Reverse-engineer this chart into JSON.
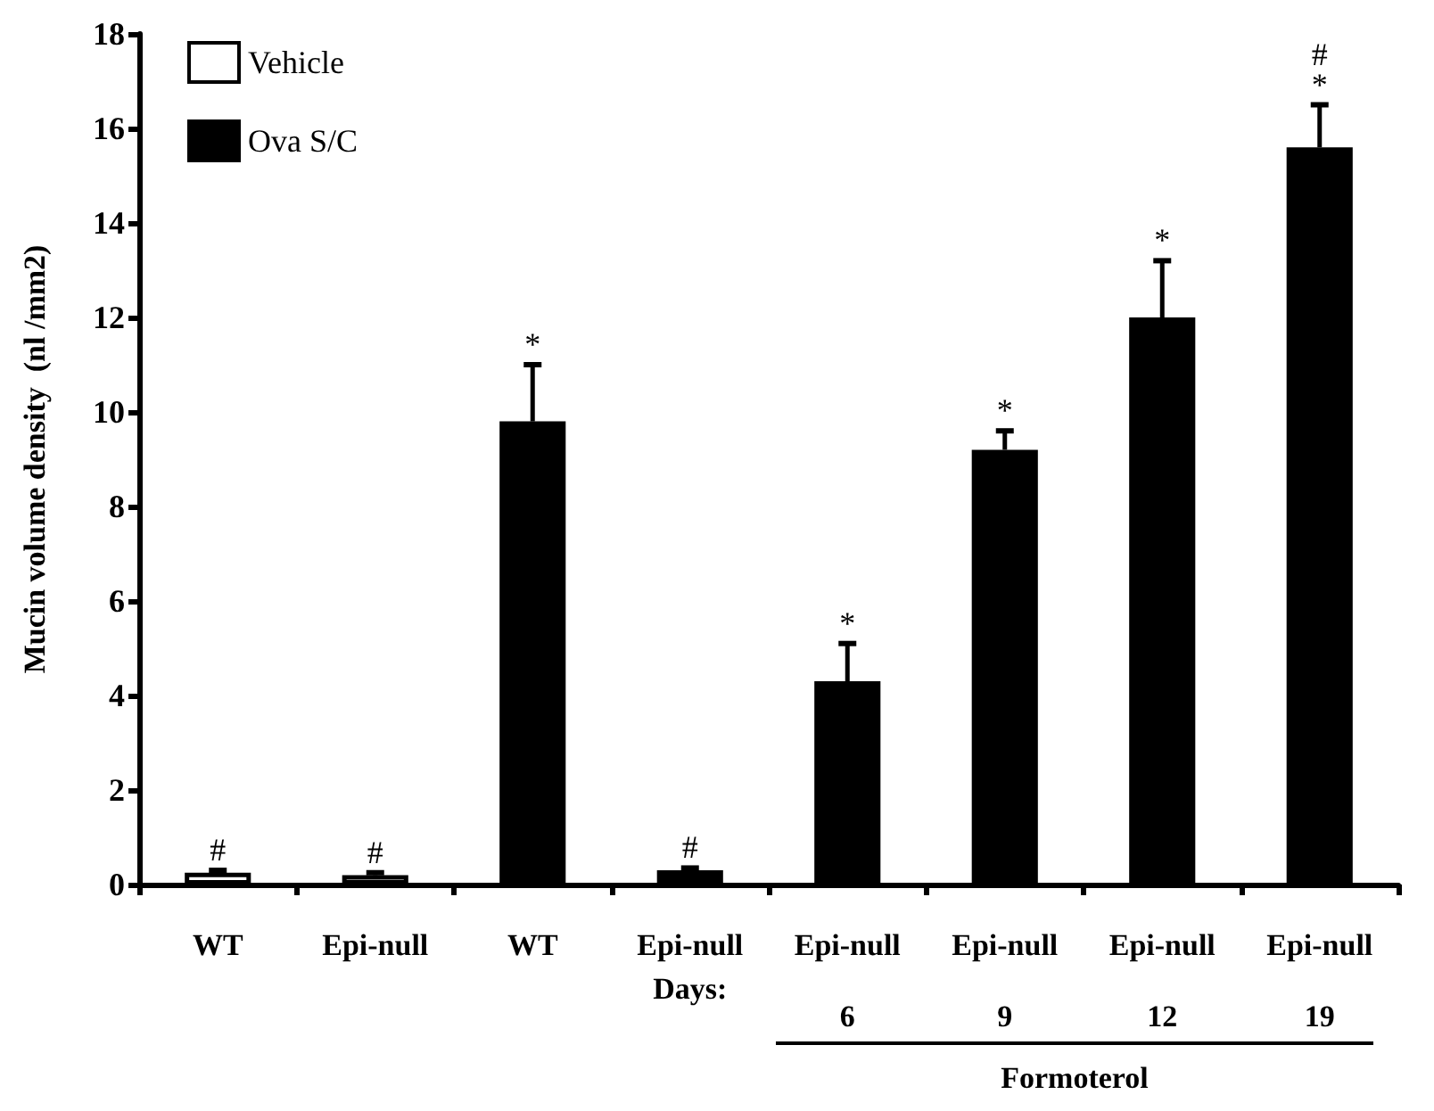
{
  "chart_data": {
    "type": "bar",
    "ylabel": "Mucin volume density  (nl /mm2)",
    "categories": [
      "WT",
      "Epi-null",
      "WT",
      "Epi-null",
      "Epi-null\n6",
      "Epi-null\n9",
      "Epi-null\n12",
      "Epi-null\n19"
    ],
    "series": [
      {
        "name": "Vehicle",
        "color": "#ffffff",
        "values": [
          0.25,
          0.2,
          null,
          null,
          null,
          null,
          null,
          null
        ],
        "errors": [
          0.05,
          0.05,
          null,
          null,
          null,
          null,
          null,
          null
        ],
        "value_labels": [
          "#",
          "#",
          null,
          null,
          null,
          null,
          null,
          null
        ]
      },
      {
        "name": "Ova S/C",
        "color": "#000000",
        "values": [
          null,
          null,
          9.8,
          0.3,
          4.3,
          9.2,
          12.0,
          15.6
        ],
        "errors": [
          null,
          null,
          1.2,
          0.05,
          0.8,
          0.4,
          1.2,
          0.9
        ],
        "value_labels": [
          null,
          null,
          "*",
          "#",
          "*",
          "*",
          "*",
          "#\n*"
        ]
      }
    ],
    "ylim": [
      0,
      18
    ],
    "yticks": [
      0,
      2,
      4,
      6,
      8,
      10,
      12,
      14,
      16,
      18
    ],
    "grid": false,
    "legend": "top left",
    "annotations": [
      "Days:",
      "Formoterol"
    ]
  }
}
